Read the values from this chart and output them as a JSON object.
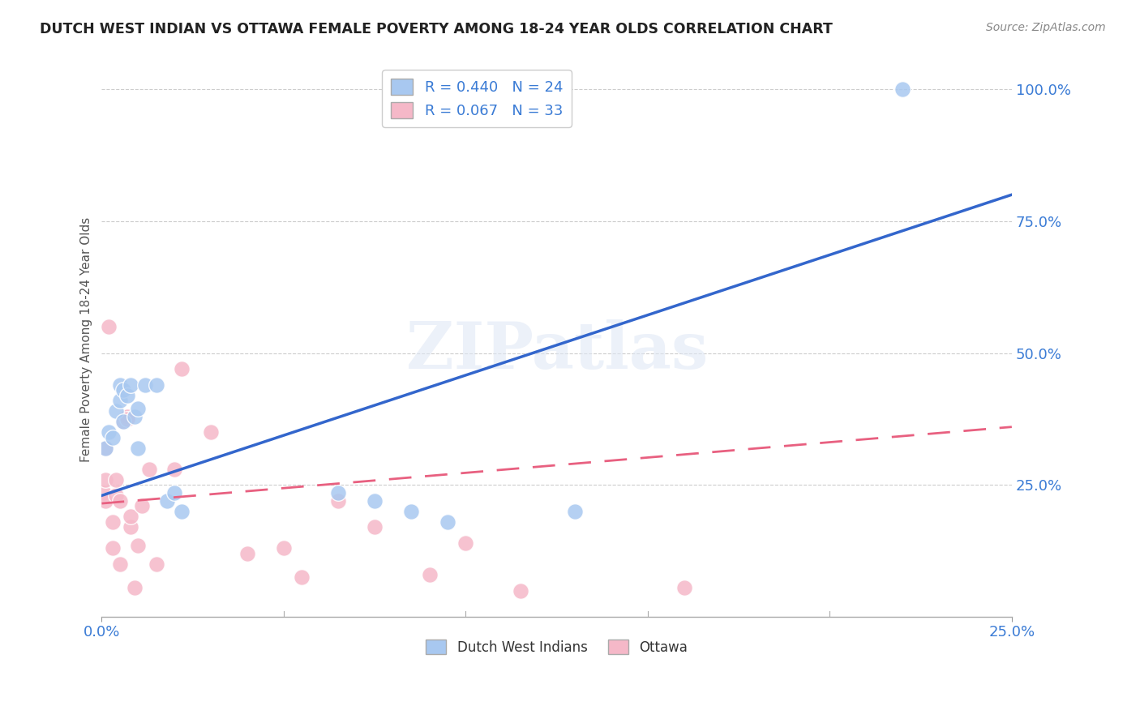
{
  "title": "DUTCH WEST INDIAN VS OTTAWA FEMALE POVERTY AMONG 18-24 YEAR OLDS CORRELATION CHART",
  "source": "Source: ZipAtlas.com",
  "ylabel": "Female Poverty Among 18-24 Year Olds",
  "xlabel": "",
  "xlim": [
    0.0,
    0.25
  ],
  "ylim": [
    0.0,
    1.05
  ],
  "xticks": [
    0.0,
    0.25
  ],
  "xticklabels": [
    "0.0%",
    "25.0%"
  ],
  "yticks": [
    0.25,
    0.5,
    0.75,
    1.0
  ],
  "yticklabels": [
    "25.0%",
    "50.0%",
    "75.0%",
    "100.0%"
  ],
  "blue_R": 0.44,
  "blue_N": 24,
  "pink_R": 0.067,
  "pink_N": 33,
  "blue_color": "#a8c8f0",
  "pink_color": "#f5b8c8",
  "blue_line_color": "#3366cc",
  "pink_line_color": "#e86080",
  "legend_blue_label": "Dutch West Indians",
  "legend_pink_label": "Ottawa",
  "watermark": "ZIPatlas",
  "blue_scatter_x": [
    0.001,
    0.002,
    0.003,
    0.004,
    0.005,
    0.005,
    0.006,
    0.006,
    0.007,
    0.008,
    0.009,
    0.01,
    0.01,
    0.012,
    0.015,
    0.018,
    0.02,
    0.022,
    0.065,
    0.075,
    0.085,
    0.095,
    0.13,
    0.22
  ],
  "blue_scatter_y": [
    0.32,
    0.35,
    0.34,
    0.39,
    0.41,
    0.44,
    0.43,
    0.37,
    0.42,
    0.44,
    0.38,
    0.32,
    0.395,
    0.44,
    0.44,
    0.22,
    0.235,
    0.2,
    0.235,
    0.22,
    0.2,
    0.18,
    0.2,
    1.0
  ],
  "pink_scatter_x": [
    0.0005,
    0.001,
    0.001,
    0.001,
    0.002,
    0.003,
    0.003,
    0.004,
    0.004,
    0.005,
    0.005,
    0.006,
    0.007,
    0.007,
    0.008,
    0.008,
    0.009,
    0.01,
    0.011,
    0.013,
    0.015,
    0.02,
    0.022,
    0.03,
    0.04,
    0.05,
    0.055,
    0.065,
    0.075,
    0.09,
    0.1,
    0.115,
    0.16
  ],
  "pink_scatter_y": [
    0.235,
    0.22,
    0.26,
    0.32,
    0.55,
    0.13,
    0.18,
    0.23,
    0.26,
    0.1,
    0.22,
    0.37,
    0.38,
    0.375,
    0.17,
    0.19,
    0.055,
    0.135,
    0.21,
    0.28,
    0.1,
    0.28,
    0.47,
    0.35,
    0.12,
    0.13,
    0.075,
    0.22,
    0.17,
    0.08,
    0.14,
    0.05,
    0.055
  ],
  "blue_line_x0": 0.0,
  "blue_line_y0": 0.23,
  "blue_line_x1": 0.25,
  "blue_line_y1": 0.8,
  "pink_line_x0": 0.0,
  "pink_line_y0": 0.215,
  "pink_line_x1": 0.25,
  "pink_line_y1": 0.36
}
